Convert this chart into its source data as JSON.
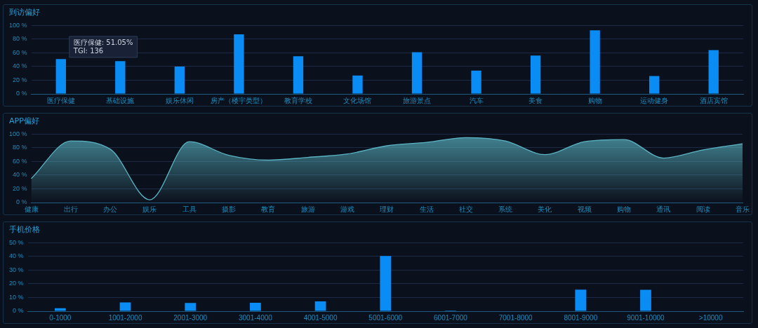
{
  "chart_data": [
    {
      "type": "bar",
      "title": "到访偏好",
      "categories": [
        "医疗保健",
        "基础设施",
        "娱乐休闲",
        "房产（楼宇类型）",
        "教育学校",
        "文化场馆",
        "旅游景点",
        "汽车",
        "美食",
        "购物",
        "运动健身",
        "酒店宾馆"
      ],
      "values": [
        51.05,
        48,
        40,
        87,
        55,
        27,
        61,
        34,
        56,
        93,
        26,
        64
      ],
      "color": "#0a8cf5",
      "ylim": [
        0,
        100
      ],
      "yticks": [
        {
          "value": 0,
          "label": "0 %"
        },
        {
          "value": 20,
          "label": "20 %"
        },
        {
          "value": 40,
          "label": "40 %"
        },
        {
          "value": 60,
          "label": "60 %"
        },
        {
          "value": 80,
          "label": "80 %"
        },
        {
          "value": 100,
          "label": "100 %"
        }
      ],
      "grid": "y",
      "legend": false,
      "annotations": [
        "医疗保健: 51.05%",
        "TGI: 136"
      ]
    },
    {
      "type": "area",
      "title": "APP偏好",
      "categories": [
        "健康",
        "出行",
        "办公",
        "娱乐",
        "工具",
        "摄影",
        "教育",
        "旅游",
        "游戏",
        "理财",
        "生活",
        "社交",
        "系统",
        "美化",
        "视频",
        "购物",
        "通讯",
        "阅读",
        "音乐"
      ],
      "values": [
        35,
        90,
        78,
        4,
        89,
        69,
        62,
        66,
        71,
        83,
        88,
        95,
        90,
        70,
        89,
        92,
        65,
        77,
        86
      ],
      "color": "#5ab4c4",
      "ylim": [
        0,
        100
      ],
      "yticks": [
        {
          "value": 0,
          "label": "0 %"
        },
        {
          "value": 20,
          "label": "20 %"
        },
        {
          "value": 40,
          "label": "40 %"
        },
        {
          "value": 60,
          "label": "60 %"
        },
        {
          "value": 80,
          "label": "80 %"
        },
        {
          "value": 100,
          "label": "100 %"
        }
      ],
      "grid": "y",
      "legend": false
    },
    {
      "type": "bar",
      "title": "手机价格",
      "categories": [
        "0-1000",
        "1001-2000",
        "2001-3000",
        "3001-4000",
        "4001-5000",
        "5001-6000",
        "6001-7000",
        "7001-8000",
        "8001-9000",
        "9001-10000",
        ">10000"
      ],
      "values": [
        2.2,
        6.4,
        6,
        6.2,
        7.2,
        40.4,
        0.5,
        0,
        15.8,
        15.6,
        0
      ],
      "color": "#0a8cf5",
      "ylim": [
        0,
        50
      ],
      "yticks": [
        {
          "value": 0,
          "label": "0 %"
        },
        {
          "value": 10,
          "label": "10 %"
        },
        {
          "value": 20,
          "label": "20 %"
        },
        {
          "value": 30,
          "label": "30 %"
        },
        {
          "value": 40,
          "label": "40 %"
        },
        {
          "value": 50,
          "label": "50 %"
        }
      ],
      "grid": "y",
      "legend": false
    }
  ]
}
